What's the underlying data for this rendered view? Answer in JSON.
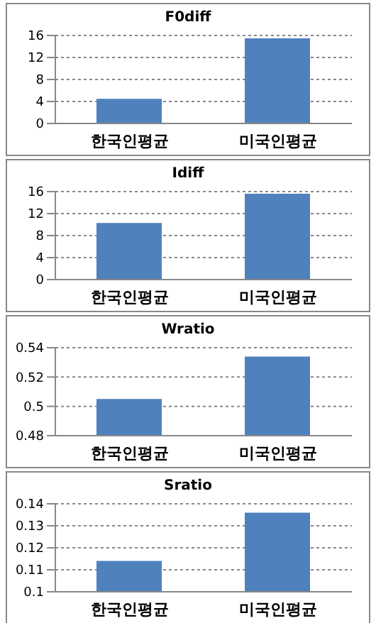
{
  "chart_data": [
    {
      "type": "bar",
      "title": "F0diff",
      "categories": [
        "한국인평균",
        "미국인평균"
      ],
      "values": [
        4.5,
        15.5
      ],
      "color": "#4f81bd",
      "ylim": [
        0,
        16
      ],
      "yticks": [
        0,
        4,
        8,
        12,
        16
      ],
      "grid": "y"
    },
    {
      "type": "bar",
      "title": "Idiff",
      "categories": [
        "한국인평균",
        "미국인평균"
      ],
      "values": [
        10.3,
        15.6
      ],
      "color": "#4f81bd",
      "ylim": [
        0,
        16
      ],
      "yticks": [
        0,
        4,
        8,
        12,
        16
      ],
      "grid": "y"
    },
    {
      "type": "bar",
      "title": "Wratio",
      "categories": [
        "한국인평균",
        "미국인평균"
      ],
      "values": [
        0.505,
        0.534
      ],
      "color": "#4f81bd",
      "ylim": [
        0.48,
        0.54
      ],
      "yticks": [
        0.48,
        0.5,
        0.52,
        0.54
      ],
      "grid": "y"
    },
    {
      "type": "bar",
      "title": "Sratio",
      "categories": [
        "한국인평균",
        "미국인평균"
      ],
      "values": [
        0.114,
        0.136
      ],
      "color": "#4f81bd",
      "ylim": [
        0.1,
        0.14
      ],
      "yticks": [
        0.1,
        0.11,
        0.12,
        0.13,
        0.14
      ],
      "grid": "y"
    }
  ]
}
